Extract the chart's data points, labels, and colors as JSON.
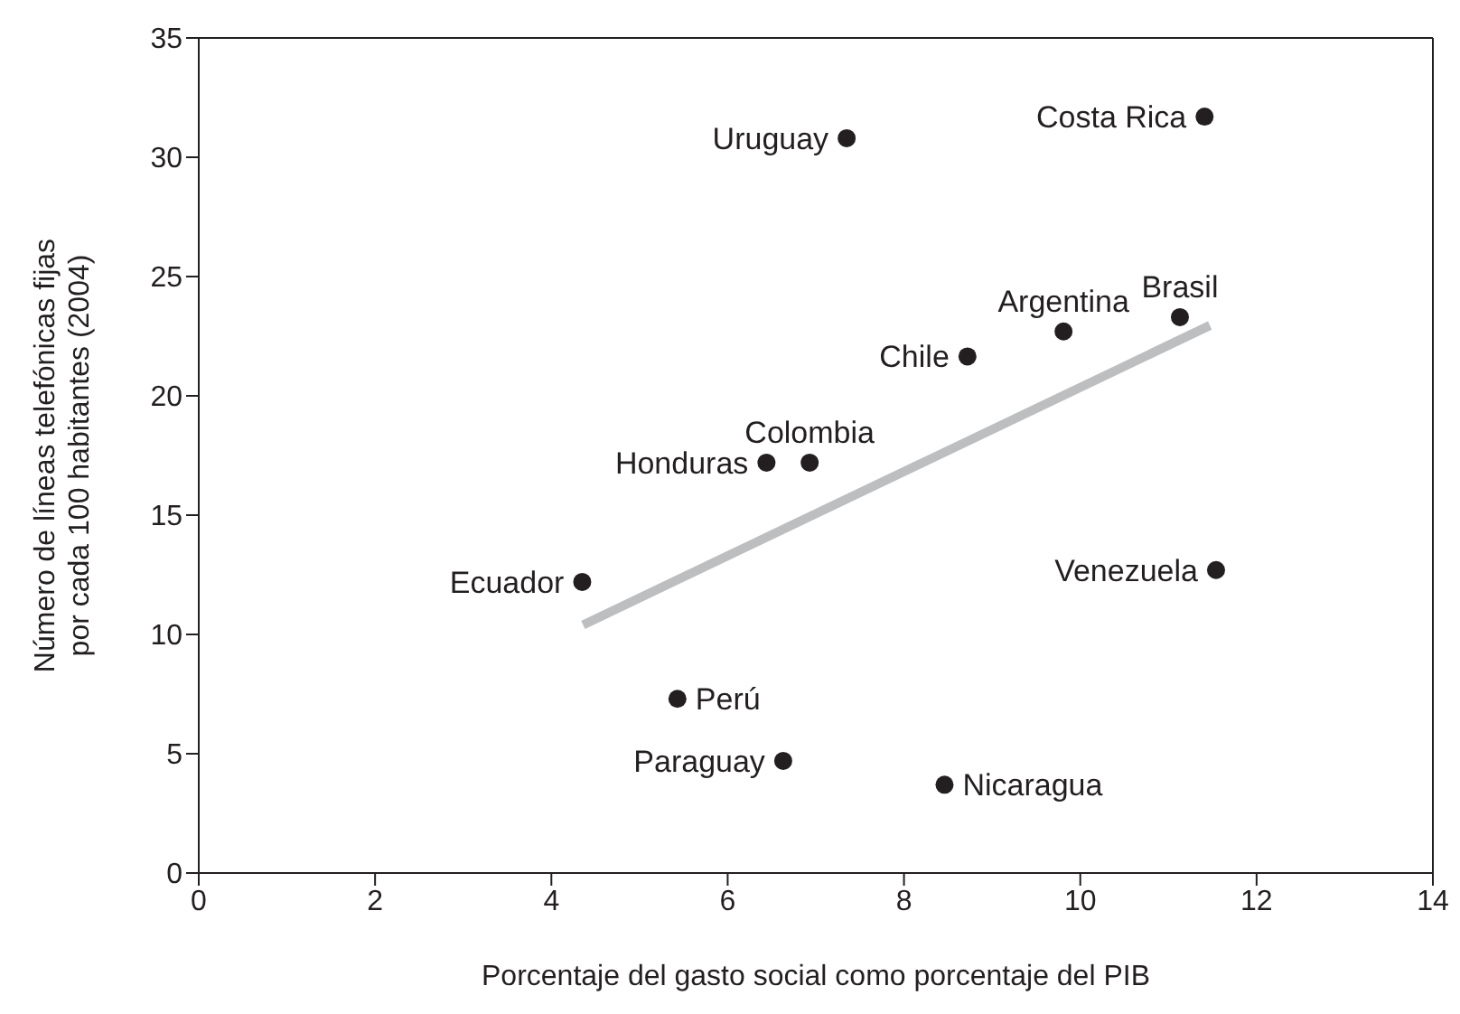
{
  "chart_data": {
    "type": "scatter",
    "xlabel": "Porcentaje del gasto social como porcentaje del PIB",
    "ylabel": "Número de líneas telefónicas fijas\npor cada 100 habitantes (2004)",
    "xlim": [
      0,
      14
    ],
    "xticks": [
      0,
      2,
      4,
      6,
      8,
      10,
      12,
      14
    ],
    "ylim": [
      0,
      35
    ],
    "yticks": [
      0,
      5,
      10,
      15,
      20,
      25,
      30,
      35
    ],
    "grid": false,
    "legend": false,
    "marker": "circle",
    "series": [
      {
        "color": "#231f20",
        "x": [
          7.35,
          11.41,
          9.81,
          11.13,
          8.72,
          6.44,
          6.93,
          4.35,
          11.54,
          5.43,
          6.63,
          8.46
        ],
        "values": [
          30.8,
          31.7,
          22.7,
          23.3,
          21.65,
          17.2,
          17.2,
          12.2,
          12.7,
          7.3,
          4.7,
          3.7
        ]
      },
      {
        "type": "line",
        "color": "#bcbec0",
        "x": [
          4.36,
          11.47
        ],
        "values": [
          10.4,
          22.95
        ],
        "marker": "none"
      }
    ],
    "annotations": [
      {
        "text": "Uruguay",
        "x": 7.35,
        "y": 30.8
      },
      {
        "text": "Costa Rica",
        "x": 11.41,
        "y": 31.7
      },
      {
        "text": "Argentina",
        "x": 9.81,
        "y": 22.7
      },
      {
        "text": "Brasil",
        "x": 11.13,
        "y": 23.3
      },
      {
        "text": "Chile",
        "x": 8.72,
        "y": 21.65
      },
      {
        "text": "Honduras",
        "x": 6.44,
        "y": 17.2
      },
      {
        "text": "Colombia",
        "x": 6.93,
        "y": 17.2
      },
      {
        "text": "Ecuador",
        "x": 4.35,
        "y": 12.2
      },
      {
        "text": "Venezuela",
        "x": 11.54,
        "y": 12.7
      },
      {
        "text": "Perú",
        "x": 5.43,
        "y": 7.3
      },
      {
        "text": "Paraguay",
        "x": 6.63,
        "y": 4.7
      },
      {
        "text": "Nicaragua",
        "x": 8.46,
        "y": 3.7
      }
    ]
  }
}
